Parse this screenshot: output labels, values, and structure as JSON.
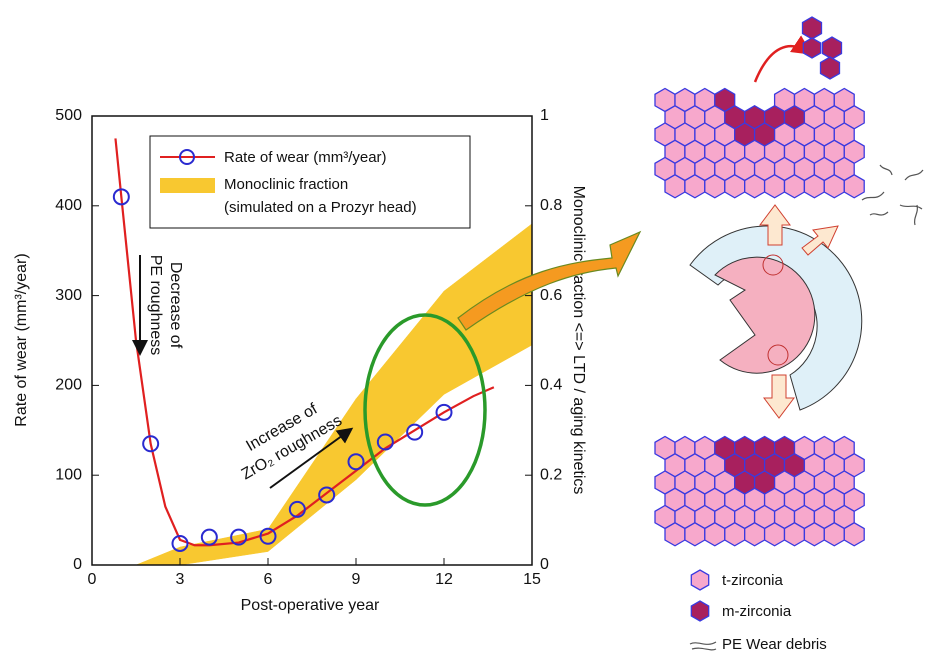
{
  "chart_data": {
    "type": "line",
    "x_label": "Post-operative year",
    "y_label": "Rate of wear (mm³/year)",
    "y2_label": "Monoclinic fraction <=> LTD / aging kinetics",
    "xlim": [
      0,
      15
    ],
    "xticks": [
      0,
      3,
      6,
      9,
      12,
      15
    ],
    "ylim": [
      0,
      500
    ],
    "yticks": [
      0,
      100,
      200,
      300,
      400,
      500
    ],
    "y2lim": [
      0,
      1
    ],
    "y2ticks": [
      0,
      0.2,
      0.4,
      0.6,
      0.8,
      1
    ],
    "series": [
      {
        "type": "line",
        "name": "Rate of wear (mm³/year)",
        "color": "#e02020",
        "marker_color": "#2a2ad0",
        "x": [
          1,
          2,
          3,
          4,
          5,
          6,
          7,
          8,
          9,
          10,
          11,
          12
        ],
        "values": [
          410,
          135,
          24,
          31,
          31,
          32,
          62,
          78,
          115,
          137,
          148,
          170
        ],
        "fit": {
          "x": [
            0.8,
            1,
            1.5,
            2,
            2.5,
            3,
            3.5,
            4,
            5,
            6,
            7,
            8,
            9,
            10,
            11,
            12,
            13,
            13.7
          ],
          "values": [
            475,
            410,
            250,
            135,
            65,
            28,
            22,
            22,
            25,
            35,
            55,
            80,
            105,
            130,
            150,
            170,
            188,
            198
          ]
        }
      },
      {
        "type": "band",
        "axis": "y2",
        "name": "Monoclinic fraction",
        "subname": "(simulated on a Prozyr head)",
        "color": "#f8c830",
        "x": [
          1.5,
          3,
          6,
          9,
          12,
          15
        ],
        "lower": [
          0,
          0,
          0.03,
          0.19,
          0.38,
          0.49
        ],
        "upper": [
          0,
          0.04,
          0.08,
          0.37,
          0.61,
          0.76
        ]
      }
    ],
    "annotations": [
      "Decrease of",
      "PE roughness",
      "Increase of",
      "ZrO₂ roughness"
    ]
  },
  "diagram": {
    "legend": [
      "t-zirconia",
      "m-zirconia",
      "PE Wear debris"
    ]
  }
}
